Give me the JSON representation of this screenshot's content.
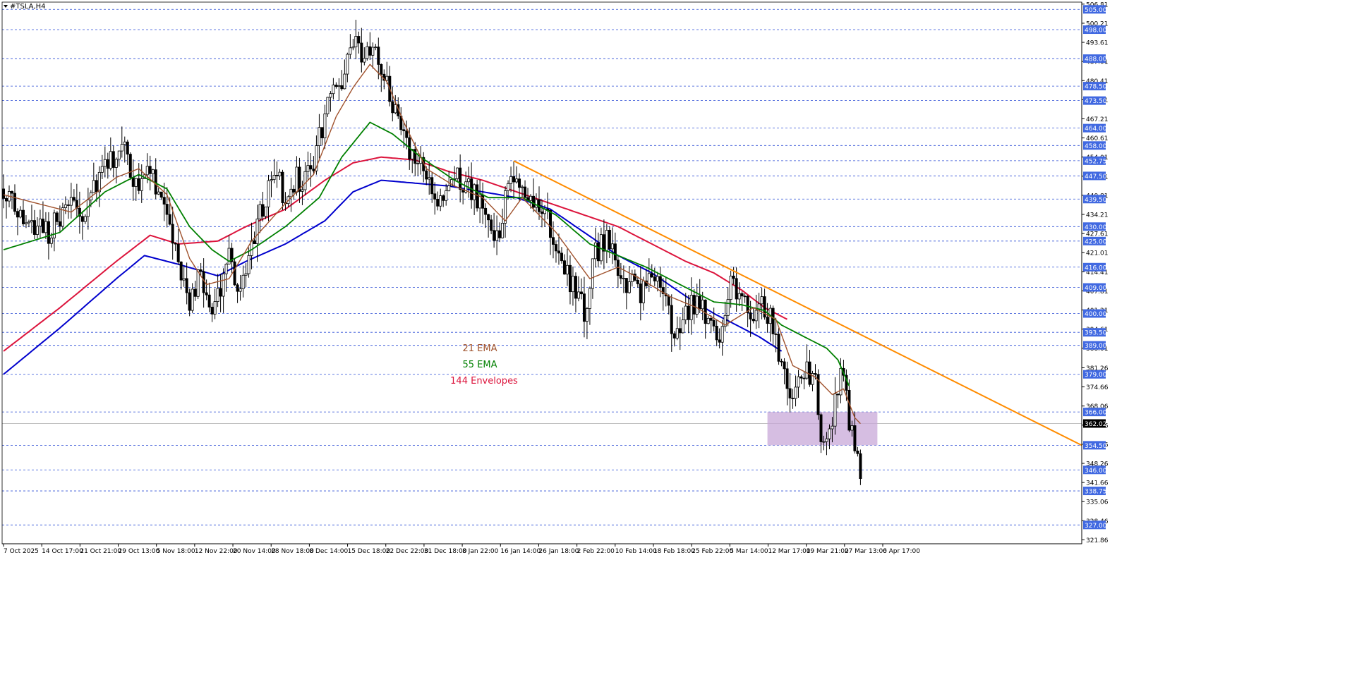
{
  "window": {
    "title": "#TSLA,H4",
    "colors": {
      "background": "#ffffff",
      "grid_line": "#2f4fd6",
      "candle": "#000000",
      "ema21": "#a0522d",
      "ema55": "#008000",
      "envelope_lower": "#0000cd",
      "envelope_upper": "#dc143c",
      "trendline": "#ff8c00",
      "zone_fill": "#c8a8d8",
      "price_tag_bg": "#4169e1",
      "current_price_bg": "#000000"
    },
    "legend": {
      "ema21": "21 EMA",
      "ema55": "55 EMA",
      "envelopes": "144 Envelopes"
    }
  },
  "chart_data": {
    "type": "candlestick",
    "symbol": "#TSLA",
    "timeframe": "H4",
    "ylim": [
      320.5,
      507.5
    ],
    "current_price": 362.02,
    "price_scale_labels": [
      "506.81",
      "500.21",
      "493.61",
      "487.01",
      "480.41",
      "473.81",
      "467.21",
      "460.61",
      "454.01",
      "447.41",
      "440.81",
      "434.21",
      "427.61",
      "421.01",
      "414.41",
      "407.81",
      "401.21",
      "394.61",
      "388.01",
      "381.26",
      "374.66",
      "368.06",
      "361.46",
      "354.86",
      "348.26",
      "341.66",
      "335.06",
      "328.46",
      "321.86"
    ],
    "horizontal_levels": [
      "505.00",
      "498.00",
      "488.00",
      "478.50",
      "473.50",
      "464.00",
      "458.00",
      "452.75",
      "447.50",
      "439.50",
      "430.00",
      "425.00",
      "416.00",
      "409.00",
      "400.00",
      "393.50",
      "389.00",
      "379.00",
      "366.00",
      "354.50",
      "346.00",
      "338.75",
      "327.00"
    ],
    "time_labels": [
      "7 Oct 2025",
      "14 Oct 17:00",
      "21 Oct 21:00",
      "29 Oct 13:00",
      "5 Nov 18:00",
      "12 Nov 22:00",
      "20 Nov 14:00",
      "28 Nov 18:00",
      "8 Dec 14:00",
      "15 Dec 18:00",
      "22 Dec 22:00",
      "31 Dec 18:00",
      "8 Jan 22:00",
      "16 Jan 14:00",
      "26 Jan 18:00",
      "2 Feb 22:00",
      "10 Feb 14:00",
      "18 Feb 18:00",
      "25 Feb 22:00",
      "5 Mar 14:00",
      "12 Mar 17:00",
      "19 Mar 21:00",
      "27 Mar 13:00",
      "6 Apr 17:00"
    ],
    "price_path": {
      "bars": 305,
      "anchors": [
        [
          0,
          443
        ],
        [
          8,
          432
        ],
        [
          16,
          428
        ],
        [
          22,
          436
        ],
        [
          28,
          436
        ],
        [
          36,
          450
        ],
        [
          42,
          458
        ],
        [
          46,
          446
        ],
        [
          52,
          448
        ],
        [
          58,
          436
        ],
        [
          62,
          420
        ],
        [
          66,
          402
        ],
        [
          70,
          414
        ],
        [
          72,
          402
        ],
        [
          74,
          398
        ],
        [
          80,
          420
        ],
        [
          84,
          406
        ],
        [
          90,
          432
        ],
        [
          96,
          450
        ],
        [
          100,
          440
        ],
        [
          104,
          448
        ],
        [
          106,
          445
        ],
        [
          110,
          452
        ],
        [
          112,
          462
        ],
        [
          116,
          474
        ],
        [
          120,
          480
        ],
        [
          124,
          493
        ],
        [
          128,
          488
        ],
        [
          132,
          492
        ],
        [
          136,
          478
        ],
        [
          140,
          466
        ],
        [
          144,
          455
        ],
        [
          148,
          450
        ],
        [
          152,
          440
        ],
        [
          156,
          438
        ],
        [
          160,
          448
        ],
        [
          164,
          445
        ],
        [
          168,
          440
        ],
        [
          172,
          432
        ],
        [
          174,
          422
        ],
        [
          178,
          438
        ],
        [
          182,
          448
        ],
        [
          186,
          442
        ],
        [
          190,
          436
        ],
        [
          194,
          430
        ],
        [
          198,
          416
        ],
        [
          202,
          410
        ],
        [
          206,
          400
        ],
        [
          210,
          420
        ],
        [
          214,
          428
        ],
        [
          218,
          412
        ],
        [
          222,
          410
        ],
        [
          226,
          408
        ],
        [
          230,
          412
        ],
        [
          234,
          405
        ],
        [
          238,
          395
        ],
        [
          242,
          400
        ],
        [
          246,
          405
        ],
        [
          250,
          398
        ],
        [
          254,
          390
        ],
        [
          258,
          412
        ],
        [
          262,
          404
        ],
        [
          266,
          400
        ],
        [
          270,
          402
        ],
        [
          274,
          395
        ],
        [
          276,
          380
        ],
        [
          280,
          372
        ],
        [
          284,
          380
        ],
        [
          288,
          378
        ],
        [
          290,
          360
        ],
        [
          292,
          358
        ],
        [
          294,
          364
        ],
        [
          296,
          376
        ],
        [
          298,
          380
        ],
        [
          300,
          364
        ],
        [
          302,
          355
        ],
        [
          304,
          341
        ]
      ],
      "wiggle_amplitude": 4.5
    },
    "ema21": [
      [
        0,
        441
      ],
      [
        24,
        435
      ],
      [
        40,
        447
      ],
      [
        48,
        450
      ],
      [
        58,
        441
      ],
      [
        66,
        419
      ],
      [
        72,
        410
      ],
      [
        80,
        412
      ],
      [
        88,
        425
      ],
      [
        100,
        438
      ],
      [
        110,
        448
      ],
      [
        118,
        468
      ],
      [
        124,
        478
      ],
      [
        130,
        486
      ],
      [
        136,
        480
      ],
      [
        142,
        466
      ],
      [
        150,
        450
      ],
      [
        160,
        444
      ],
      [
        170,
        440
      ],
      [
        178,
        432
      ],
      [
        184,
        440
      ],
      [
        196,
        428
      ],
      [
        208,
        412
      ],
      [
        218,
        416
      ],
      [
        226,
        412
      ],
      [
        236,
        406
      ],
      [
        246,
        402
      ],
      [
        256,
        396
      ],
      [
        266,
        402
      ],
      [
        274,
        398
      ],
      [
        280,
        382
      ],
      [
        288,
        378
      ],
      [
        294,
        372
      ],
      [
        298,
        374
      ],
      [
        302,
        364
      ],
      [
        304,
        362
      ]
    ],
    "ema55": [
      [
        0,
        422
      ],
      [
        20,
        428
      ],
      [
        36,
        442
      ],
      [
        48,
        448
      ],
      [
        58,
        443
      ],
      [
        66,
        430
      ],
      [
        74,
        422
      ],
      [
        80,
        418
      ],
      [
        88,
        422
      ],
      [
        100,
        430
      ],
      [
        112,
        440
      ],
      [
        120,
        454
      ],
      [
        130,
        466
      ],
      [
        138,
        462
      ],
      [
        148,
        454
      ],
      [
        160,
        446
      ],
      [
        172,
        440
      ],
      [
        184,
        440
      ],
      [
        196,
        434
      ],
      [
        208,
        424
      ],
      [
        218,
        420
      ],
      [
        228,
        416
      ],
      [
        240,
        410
      ],
      [
        252,
        404
      ],
      [
        262,
        403
      ],
      [
        270,
        401
      ],
      [
        276,
        396
      ],
      [
        284,
        392
      ],
      [
        292,
        388
      ],
      [
        296,
        384
      ],
      [
        300,
        375
      ]
    ],
    "envelope_lower": [
      [
        0,
        379
      ],
      [
        20,
        395
      ],
      [
        40,
        412
      ],
      [
        50,
        420
      ],
      [
        62,
        417
      ],
      [
        76,
        413
      ],
      [
        86,
        418
      ],
      [
        100,
        424
      ],
      [
        114,
        432
      ],
      [
        124,
        442
      ],
      [
        134,
        446
      ],
      [
        146,
        445
      ],
      [
        158,
        444
      ],
      [
        170,
        442
      ],
      [
        182,
        440
      ],
      [
        194,
        436
      ],
      [
        206,
        428
      ],
      [
        218,
        420
      ],
      [
        230,
        414
      ],
      [
        242,
        406
      ],
      [
        252,
        400
      ],
      [
        260,
        396
      ],
      [
        268,
        392
      ],
      [
        276,
        387
      ]
    ],
    "envelope_upper": [
      [
        0,
        387
      ],
      [
        20,
        402
      ],
      [
        40,
        418
      ],
      [
        52,
        427
      ],
      [
        62,
        424
      ],
      [
        76,
        425
      ],
      [
        86,
        430
      ],
      [
        100,
        436
      ],
      [
        114,
        446
      ],
      [
        124,
        452
      ],
      [
        134,
        454
      ],
      [
        146,
        453
      ],
      [
        158,
        449
      ],
      [
        170,
        446
      ],
      [
        182,
        442
      ],
      [
        194,
        438
      ],
      [
        206,
        434
      ],
      [
        218,
        430
      ],
      [
        230,
        424
      ],
      [
        242,
        418
      ],
      [
        252,
        414
      ],
      [
        262,
        408
      ],
      [
        270,
        402
      ],
      [
        278,
        398
      ]
    ],
    "trendline": {
      "start": [
        181,
        452.7
      ],
      "end": [
        382,
        354.5
      ]
    },
    "zone": {
      "x0": 271,
      "x1": 310,
      "y0": 354.5,
      "y1": 366
    }
  }
}
